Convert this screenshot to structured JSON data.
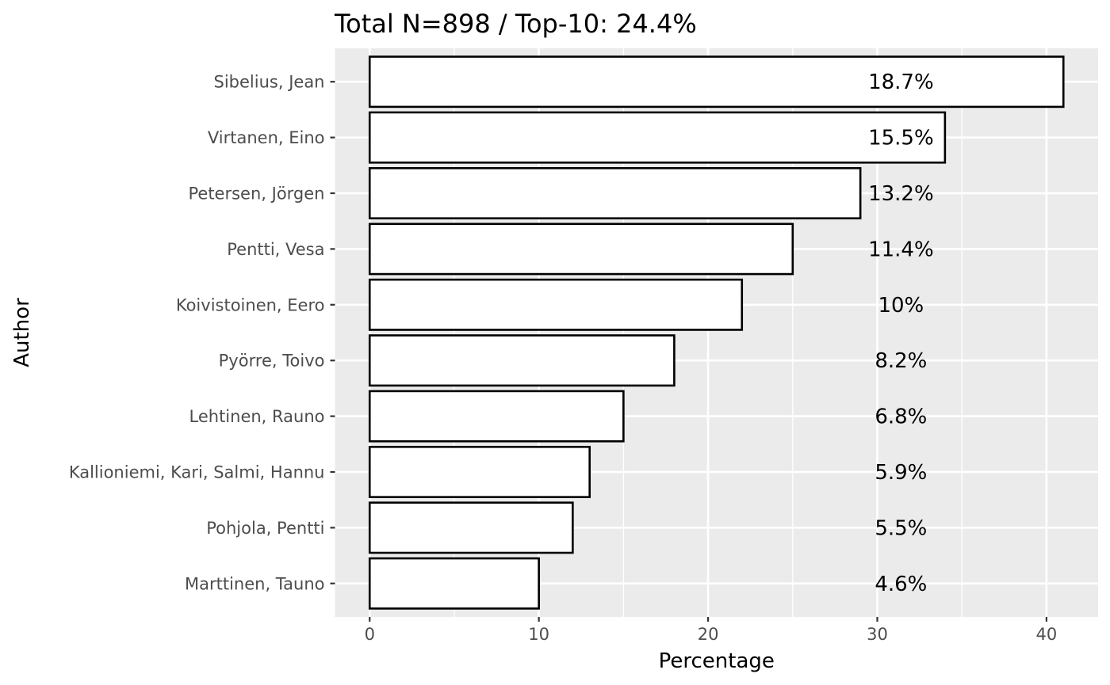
{
  "chart_data": {
    "type": "bar",
    "orientation": "horizontal",
    "title": "Total N=898 / Top-10: 24.4%",
    "xlabel": "Percentage",
    "ylabel": "Author",
    "categories": [
      "Sibelius, Jean",
      "Virtanen, Eino",
      "Petersen, Jörgen",
      "Pentti, Vesa",
      "Koivistoinen, Eero",
      "Pyörre, Toivo",
      "Lehtinen, Rauno",
      "Kallioniemi, Kari, Salmi, Hannu",
      "Pohjola, Pentti",
      "Marttinen, Tauno"
    ],
    "values": [
      41,
      34,
      29,
      25,
      22,
      18,
      15,
      13,
      12,
      10
    ],
    "data_labels": [
      "18.7%",
      "15.5%",
      "13.2%",
      "11.4%",
      "10%",
      "8.2%",
      "6.8%",
      "5.9%",
      "5.5%",
      "4.6%"
    ],
    "xlim": [
      -2.05,
      43.05
    ],
    "xticks": [
      0,
      10,
      20,
      30,
      40
    ],
    "xtick_labels": [
      "0",
      "10",
      "20",
      "30",
      "40"
    ],
    "grid": true,
    "bar_fill": "#ffffff",
    "bar_outline": "#000000",
    "panel_background": "#ebebeb"
  }
}
